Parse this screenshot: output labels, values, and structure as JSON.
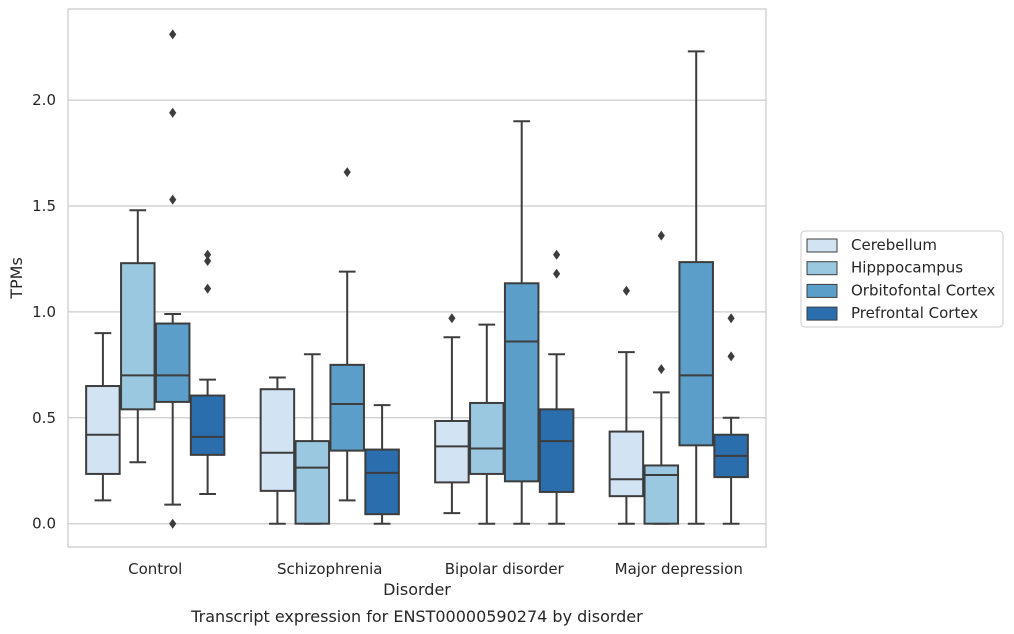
{
  "caption": "Transcript expression for ENST00000590274 by disorder",
  "chart_data": {
    "type": "boxplot",
    "xlabel": "Disorder",
    "ylabel": "TPMs",
    "ylim": [
      -0.11,
      2.43
    ],
    "yticks": [
      "0.0",
      "0.5",
      "1.0",
      "1.5",
      "2.0"
    ],
    "ytick_values": [
      0,
      0.5,
      1.0,
      1.5,
      2.0
    ],
    "grid": "horizontal",
    "legend_position": "right",
    "categories": [
      "Control",
      "Schizophrenia",
      "Bipolar disorder",
      "Major depression"
    ],
    "series": [
      {
        "name": "Cerebellum",
        "color": "#d2e3f3",
        "boxes": [
          {
            "whislo": 0.11,
            "q1": 0.235,
            "med": 0.42,
            "q3": 0.65,
            "whishi": 0.9,
            "fliers": []
          },
          {
            "whislo": 0.0,
            "q1": 0.155,
            "med": 0.335,
            "q3": 0.635,
            "whishi": 0.69,
            "fliers": []
          },
          {
            "whislo": 0.05,
            "q1": 0.195,
            "med": 0.365,
            "q3": 0.485,
            "whishi": 0.88,
            "fliers": [
              0.97
            ]
          },
          {
            "whislo": 0.0,
            "q1": 0.13,
            "med": 0.21,
            "q3": 0.435,
            "whishi": 0.81,
            "fliers": [
              1.1
            ]
          }
        ]
      },
      {
        "name": "Hipppocampus",
        "color": "#9ac8e0",
        "boxes": [
          {
            "whislo": 0.29,
            "q1": 0.54,
            "med": 0.7,
            "q3": 1.23,
            "whishi": 1.48,
            "fliers": []
          },
          {
            "whislo": 0.0,
            "q1": 0.0,
            "med": 0.265,
            "q3": 0.39,
            "whishi": 0.8,
            "fliers": []
          },
          {
            "whislo": 0.0,
            "q1": 0.235,
            "med": 0.355,
            "q3": 0.57,
            "whishi": 0.94,
            "fliers": []
          },
          {
            "whislo": 0.0,
            "q1": 0.0,
            "med": 0.23,
            "q3": 0.275,
            "whishi": 0.62,
            "fliers": [
              0.73,
              1.36
            ]
          }
        ]
      },
      {
        "name": "Orbitofontal Cortex",
        "color": "#5a9ec9",
        "boxes": [
          {
            "whislo": 0.09,
            "q1": 0.575,
            "med": 0.7,
            "q3": 0.945,
            "whishi": 0.99,
            "fliers": [
              0.0,
              1.53,
              1.94,
              2.31
            ]
          },
          {
            "whislo": 0.11,
            "q1": 0.345,
            "med": 0.565,
            "q3": 0.75,
            "whishi": 1.19,
            "fliers": [
              1.66
            ]
          },
          {
            "whislo": 0.0,
            "q1": 0.2,
            "med": 0.86,
            "q3": 1.135,
            "whishi": 1.9,
            "fliers": []
          },
          {
            "whislo": 0.0,
            "q1": 0.37,
            "med": 0.7,
            "q3": 1.235,
            "whishi": 2.23,
            "fliers": []
          }
        ]
      },
      {
        "name": "Prefrontal Cortex",
        "color": "#2a6eae",
        "boxes": [
          {
            "whislo": 0.14,
            "q1": 0.325,
            "med": 0.41,
            "q3": 0.605,
            "whishi": 0.68,
            "fliers": [
              1.11,
              1.24,
              1.27
            ]
          },
          {
            "whislo": 0.0,
            "q1": 0.045,
            "med": 0.24,
            "q3": 0.35,
            "whishi": 0.56,
            "fliers": []
          },
          {
            "whislo": 0.0,
            "q1": 0.15,
            "med": 0.39,
            "q3": 0.54,
            "whishi": 0.8,
            "fliers": [
              1.18,
              1.27
            ]
          },
          {
            "whislo": 0.0,
            "q1": 0.22,
            "med": 0.32,
            "q3": 0.42,
            "whishi": 0.5,
            "fliers": [
              0.79,
              0.97
            ]
          }
        ]
      }
    ]
  }
}
